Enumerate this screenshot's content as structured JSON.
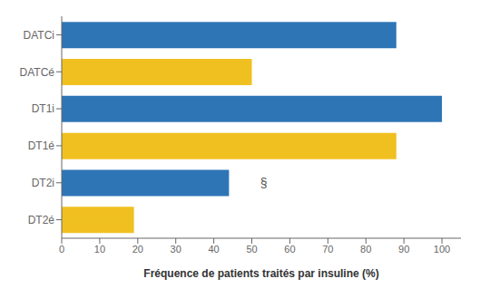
{
  "chart_data": {
    "type": "bar",
    "orientation": "horizontal",
    "categories": [
      "DATCi",
      "DATCé",
      "DT1i",
      "DT1é",
      "DT2i",
      "DT2é"
    ],
    "values": [
      88,
      50,
      100,
      88,
      44,
      19
    ],
    "colors": [
      "#2E75B6",
      "#F0C020",
      "#2E75B6",
      "#F0C020",
      "#2E75B6",
      "#F0C020"
    ],
    "xlabel": "Fréquence de patients traités par insuline (%)",
    "xlim": [
      0,
      105
    ],
    "xticks": [
      0,
      10,
      20,
      30,
      40,
      50,
      60,
      70,
      80,
      90,
      100
    ],
    "grid": false,
    "annotations": [
      {
        "text": "§",
        "x": 51,
        "category": "DT2i"
      }
    ]
  }
}
